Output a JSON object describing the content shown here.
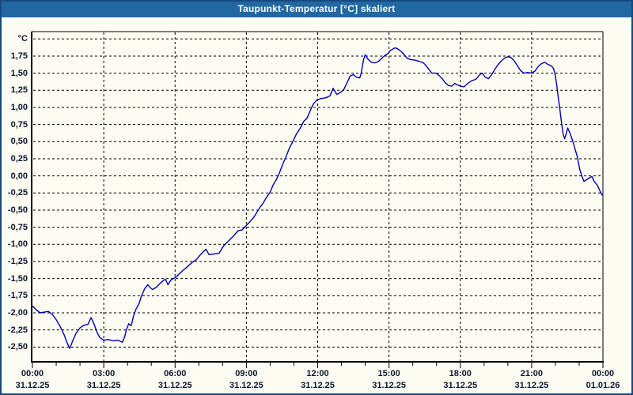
{
  "window": {
    "title": "Taupunkt-Temperatur [°C] skaliert"
  },
  "colors": {
    "titlebar_bg": "#2168A3",
    "titlebar_text": "#FFFFFF",
    "page_bg": "#FCFCF2",
    "outer_border": "#17497E",
    "plot_border": "#000000",
    "grid": "#000000",
    "line": "#0000B4",
    "label_text": "#0A1630"
  },
  "chart_data": {
    "type": "line",
    "title": "Taupunkt-Temperatur [°C] skaliert",
    "xlabel": "",
    "ylabel": "°C",
    "grid": "dashed",
    "legend_position": "none",
    "ylim": [
      -2.715,
      2.107
    ],
    "xlim_hours": [
      0,
      24
    ],
    "y_tick_step": 0.25,
    "y_ticks": [
      {
        "value": 2.0,
        "label": "°C"
      },
      {
        "value": 1.75,
        "label": "1,75"
      },
      {
        "value": 1.5,
        "label": "1,50"
      },
      {
        "value": 1.25,
        "label": "1,25"
      },
      {
        "value": 1.0,
        "label": "1,00"
      },
      {
        "value": 0.75,
        "label": "0,75"
      },
      {
        "value": 0.5,
        "label": "0,50"
      },
      {
        "value": 0.25,
        "label": "0,25"
      },
      {
        "value": 0.0,
        "label": "0,00"
      },
      {
        "value": -0.25,
        "label": "-0,25"
      },
      {
        "value": -0.5,
        "label": "-0,50"
      },
      {
        "value": -0.75,
        "label": "-0,75"
      },
      {
        "value": -1.0,
        "label": "-1,00"
      },
      {
        "value": -1.25,
        "label": "-1,25"
      },
      {
        "value": -1.5,
        "label": "-1,50"
      },
      {
        "value": -1.75,
        "label": "-1,75"
      },
      {
        "value": -2.0,
        "label": "-2,00"
      },
      {
        "value": -2.25,
        "label": "-2,25"
      },
      {
        "value": -2.5,
        "label": "-2,50"
      }
    ],
    "x_ticks": [
      {
        "hour": 0,
        "time": "00:00",
        "date": "31.12.25"
      },
      {
        "hour": 3,
        "time": "03:00",
        "date": "31.12.25"
      },
      {
        "hour": 6,
        "time": "06:00",
        "date": "31.12.25"
      },
      {
        "hour": 9,
        "time": "09:00",
        "date": "31.12.25"
      },
      {
        "hour": 12,
        "time": "12:00",
        "date": "31.12.25"
      },
      {
        "hour": 15,
        "time": "15:00",
        "date": "31.12.25"
      },
      {
        "hour": 18,
        "time": "18:00",
        "date": "31.12.25"
      },
      {
        "hour": 21,
        "time": "21:00",
        "date": "31.12.25"
      },
      {
        "hour": 24,
        "time": "00:00",
        "date": "01.01.26"
      }
    ],
    "x_minor_tick_hours": 1,
    "x_gridline_hours": [
      3,
      6,
      9,
      12,
      15,
      18,
      21
    ],
    "series": [
      {
        "name": "Taupunkt-Temperatur",
        "color": "#0000B4",
        "points": [
          [
            0.0,
            -1.9
          ],
          [
            0.17,
            -1.96
          ],
          [
            0.33,
            -2.0
          ],
          [
            0.5,
            -1.99
          ],
          [
            0.67,
            -1.98
          ],
          [
            0.83,
            -2.02
          ],
          [
            1.0,
            -2.1
          ],
          [
            1.17,
            -2.2
          ],
          [
            1.33,
            -2.32
          ],
          [
            1.47,
            -2.45
          ],
          [
            1.57,
            -2.52
          ],
          [
            1.67,
            -2.43
          ],
          [
            1.83,
            -2.3
          ],
          [
            2.0,
            -2.22
          ],
          [
            2.17,
            -2.18
          ],
          [
            2.33,
            -2.17
          ],
          [
            2.47,
            -2.07
          ],
          [
            2.6,
            -2.17
          ],
          [
            2.7,
            -2.27
          ],
          [
            2.83,
            -2.36
          ],
          [
            3.0,
            -2.4
          ],
          [
            3.2,
            -2.39
          ],
          [
            3.4,
            -2.41
          ],
          [
            3.6,
            -2.4
          ],
          [
            3.78,
            -2.43
          ],
          [
            3.88,
            -2.35
          ],
          [
            3.95,
            -2.25
          ],
          [
            4.05,
            -2.16
          ],
          [
            4.15,
            -2.19
          ],
          [
            4.25,
            -2.05
          ],
          [
            4.35,
            -1.95
          ],
          [
            4.48,
            -1.87
          ],
          [
            4.58,
            -1.76
          ],
          [
            4.72,
            -1.65
          ],
          [
            4.85,
            -1.59
          ],
          [
            4.95,
            -1.63
          ],
          [
            5.05,
            -1.66
          ],
          [
            5.2,
            -1.63
          ],
          [
            5.37,
            -1.57
          ],
          [
            5.5,
            -1.53
          ],
          [
            5.6,
            -1.51
          ],
          [
            5.7,
            -1.59
          ],
          [
            5.83,
            -1.52
          ],
          [
            6.03,
            -1.48
          ],
          [
            6.27,
            -1.4
          ],
          [
            6.47,
            -1.34
          ],
          [
            6.7,
            -1.27
          ],
          [
            6.9,
            -1.22
          ],
          [
            7.07,
            -1.15
          ],
          [
            7.3,
            -1.07
          ],
          [
            7.43,
            -1.15
          ],
          [
            7.65,
            -1.14
          ],
          [
            7.85,
            -1.13
          ],
          [
            8.05,
            -1.02
          ],
          [
            8.28,
            -0.94
          ],
          [
            8.48,
            -0.87
          ],
          [
            8.65,
            -0.8
          ],
          [
            8.82,
            -0.79
          ],
          [
            8.98,
            -0.73
          ],
          [
            9.15,
            -0.67
          ],
          [
            9.3,
            -0.61
          ],
          [
            9.43,
            -0.54
          ],
          [
            9.57,
            -0.46
          ],
          [
            9.7,
            -0.4
          ],
          [
            9.87,
            -0.3
          ],
          [
            10.0,
            -0.24
          ],
          [
            10.13,
            -0.13
          ],
          [
            10.27,
            -0.05
          ],
          [
            10.4,
            0.05
          ],
          [
            10.53,
            0.17
          ],
          [
            10.67,
            0.28
          ],
          [
            10.8,
            0.4
          ],
          [
            10.95,
            0.5
          ],
          [
            11.1,
            0.61
          ],
          [
            11.27,
            0.7
          ],
          [
            11.42,
            0.8
          ],
          [
            11.55,
            0.84
          ],
          [
            11.68,
            0.95
          ],
          [
            11.82,
            1.05
          ],
          [
            11.97,
            1.11
          ],
          [
            12.15,
            1.13
          ],
          [
            12.35,
            1.14
          ],
          [
            12.52,
            1.17
          ],
          [
            12.65,
            1.28
          ],
          [
            12.8,
            1.19
          ],
          [
            12.97,
            1.22
          ],
          [
            13.1,
            1.26
          ],
          [
            13.23,
            1.36
          ],
          [
            13.37,
            1.46
          ],
          [
            13.5,
            1.48
          ],
          [
            13.63,
            1.44
          ],
          [
            13.77,
            1.43
          ],
          [
            13.83,
            1.5
          ],
          [
            13.93,
            1.7
          ],
          [
            14.0,
            1.77
          ],
          [
            14.1,
            1.71
          ],
          [
            14.25,
            1.66
          ],
          [
            14.4,
            1.65
          ],
          [
            14.55,
            1.67
          ],
          [
            14.7,
            1.72
          ],
          [
            14.83,
            1.76
          ],
          [
            14.97,
            1.79
          ],
          [
            15.05,
            1.83
          ],
          [
            15.15,
            1.85
          ],
          [
            15.25,
            1.87
          ],
          [
            15.35,
            1.86
          ],
          [
            15.5,
            1.82
          ],
          [
            15.62,
            1.78
          ],
          [
            15.75,
            1.72
          ],
          [
            15.9,
            1.7
          ],
          [
            16.1,
            1.69
          ],
          [
            16.3,
            1.67
          ],
          [
            16.45,
            1.65
          ],
          [
            16.53,
            1.62
          ],
          [
            16.67,
            1.56
          ],
          [
            16.8,
            1.5
          ],
          [
            16.97,
            1.5
          ],
          [
            17.1,
            1.47
          ],
          [
            17.24,
            1.42
          ],
          [
            17.37,
            1.36
          ],
          [
            17.5,
            1.32
          ],
          [
            17.64,
            1.31
          ],
          [
            17.77,
            1.35
          ],
          [
            17.87,
            1.33
          ],
          [
            18.01,
            1.31
          ],
          [
            18.15,
            1.3
          ],
          [
            18.31,
            1.35
          ],
          [
            18.48,
            1.39
          ],
          [
            18.65,
            1.41
          ],
          [
            18.82,
            1.48
          ],
          [
            18.92,
            1.5
          ],
          [
            19.05,
            1.44
          ],
          [
            19.19,
            1.42
          ],
          [
            19.32,
            1.48
          ],
          [
            19.46,
            1.56
          ],
          [
            19.6,
            1.63
          ],
          [
            19.73,
            1.68
          ],
          [
            19.86,
            1.72
          ],
          [
            20.0,
            1.74
          ],
          [
            20.13,
            1.73
          ],
          [
            20.27,
            1.68
          ],
          [
            20.4,
            1.61
          ],
          [
            20.53,
            1.54
          ],
          [
            20.67,
            1.5
          ],
          [
            20.83,
            1.51
          ],
          [
            21.0,
            1.5
          ],
          [
            21.14,
            1.53
          ],
          [
            21.28,
            1.6
          ],
          [
            21.42,
            1.64
          ],
          [
            21.55,
            1.66
          ],
          [
            21.68,
            1.63
          ],
          [
            21.82,
            1.61
          ],
          [
            21.92,
            1.57
          ],
          [
            21.99,
            1.48
          ],
          [
            22.06,
            1.32
          ],
          [
            22.12,
            1.15
          ],
          [
            22.18,
            1.0
          ],
          [
            22.25,
            0.8
          ],
          [
            22.32,
            0.62
          ],
          [
            22.39,
            0.54
          ],
          [
            22.46,
            0.62
          ],
          [
            22.52,
            0.7
          ],
          [
            22.62,
            0.62
          ],
          [
            22.72,
            0.52
          ],
          [
            22.82,
            0.4
          ],
          [
            22.92,
            0.28
          ],
          [
            23.02,
            0.1
          ],
          [
            23.1,
            0.01
          ],
          [
            23.2,
            -0.08
          ],
          [
            23.33,
            -0.05
          ],
          [
            23.47,
            -0.02
          ],
          [
            23.54,
            -0.01
          ],
          [
            23.63,
            -0.08
          ],
          [
            23.77,
            -0.14
          ],
          [
            23.9,
            -0.24
          ],
          [
            23.97,
            -0.28
          ],
          [
            24.0,
            -0.27
          ]
        ]
      }
    ]
  }
}
